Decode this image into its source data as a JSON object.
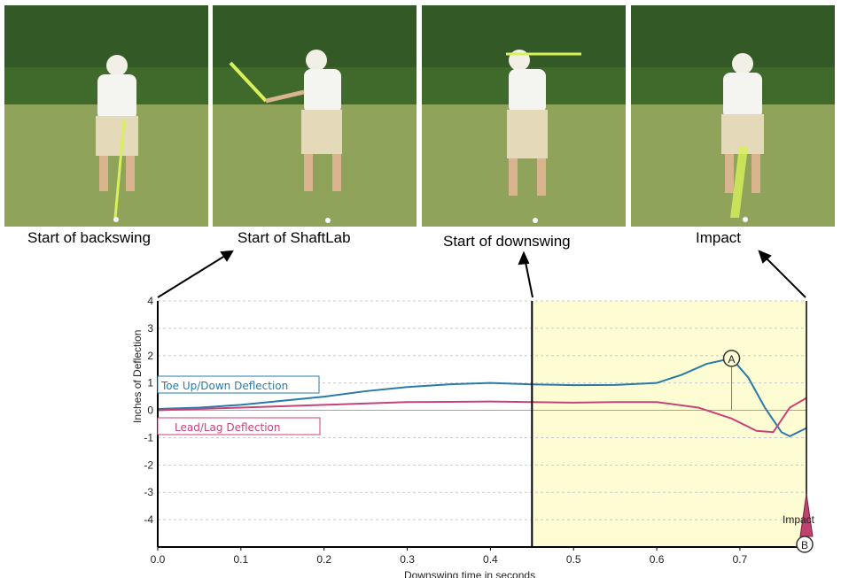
{
  "photos": [
    {
      "caption": "Start of backswing"
    },
    {
      "caption": "Start of ShaftLab"
    },
    {
      "caption": "Start of downswing"
    },
    {
      "caption": "Impact"
    }
  ],
  "chart_data": {
    "type": "line",
    "xlabel": "Downswing time in seconds",
    "ylabel": "Inches of Deflection",
    "xlim": [
      0,
      0.78
    ],
    "ylim": [
      -5,
      4
    ],
    "xticks": [
      "0.0",
      "0.1",
      "0.2",
      "0.3",
      "0.4",
      "0.5",
      "0.6",
      "0.7"
    ],
    "yticks": [
      "4",
      "3",
      "2",
      "1",
      "0",
      "-1",
      "-2",
      "-3",
      "-4"
    ],
    "grid": true,
    "highlight_region": {
      "x_start": 0.45,
      "x_end": 0.78,
      "color": "#fdfcd2"
    },
    "series": [
      {
        "name": "Toe Up/Down Deflection",
        "color": "#2a7aa8",
        "x": [
          0.0,
          0.05,
          0.1,
          0.15,
          0.2,
          0.25,
          0.3,
          0.35,
          0.4,
          0.45,
          0.5,
          0.55,
          0.6,
          0.63,
          0.66,
          0.69,
          0.71,
          0.73,
          0.75,
          0.76,
          0.77,
          0.78
        ],
        "y": [
          0.05,
          0.1,
          0.2,
          0.35,
          0.5,
          0.7,
          0.85,
          0.95,
          1.0,
          0.95,
          0.92,
          0.93,
          1.0,
          1.3,
          1.7,
          1.9,
          1.2,
          0.1,
          -0.8,
          -0.95,
          -0.8,
          -0.65
        ]
      },
      {
        "name": "Lead/Lag Deflection",
        "color": "#c8427a",
        "x": [
          0.0,
          0.1,
          0.2,
          0.3,
          0.4,
          0.45,
          0.5,
          0.55,
          0.6,
          0.65,
          0.69,
          0.72,
          0.74,
          0.76,
          0.78
        ],
        "y": [
          0.0,
          0.1,
          0.2,
          0.3,
          0.32,
          0.3,
          0.28,
          0.3,
          0.3,
          0.1,
          -0.3,
          -0.75,
          -0.8,
          0.1,
          0.45
        ]
      }
    ],
    "annotations": [
      {
        "label": "A",
        "x": 0.69,
        "y": 1.9
      },
      {
        "label": "B",
        "x": 0.78,
        "y": -5
      },
      {
        "label": "Impact",
        "x": 0.78,
        "y": -4
      }
    ]
  }
}
